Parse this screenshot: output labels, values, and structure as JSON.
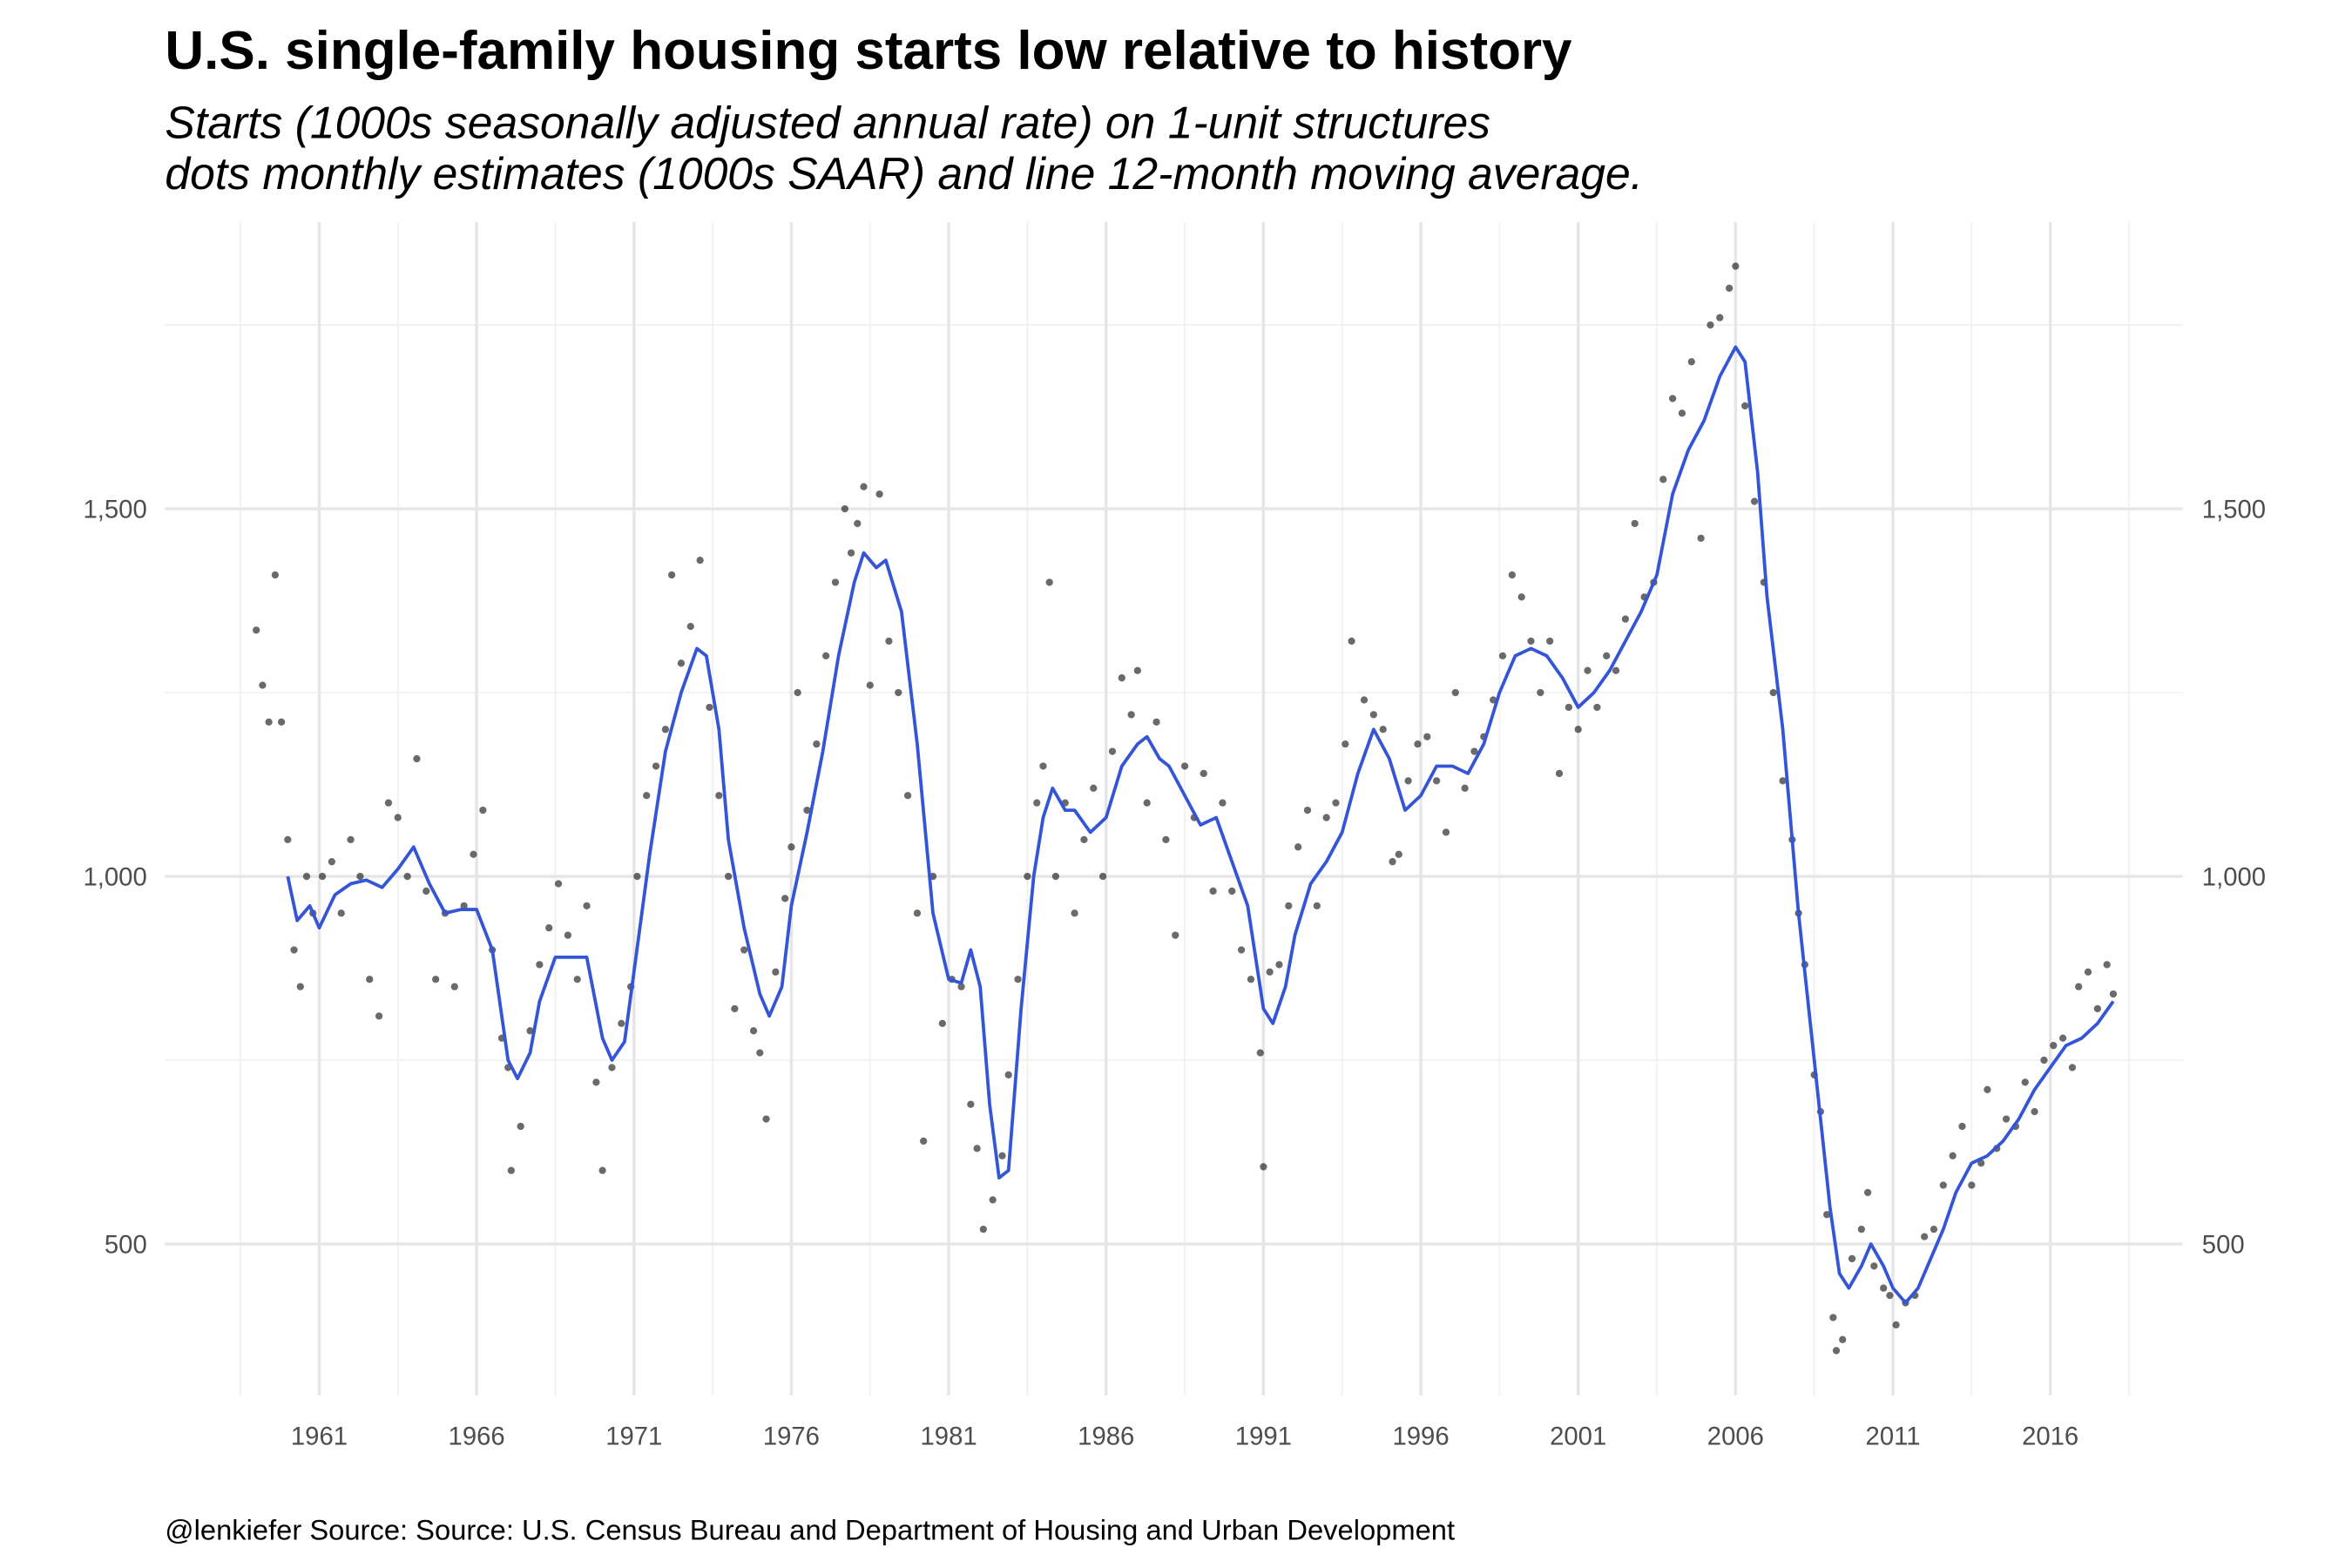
{
  "chart_data": {
    "type": "line",
    "title": "U.S. single-family housing starts low relative to history",
    "subtitle": [
      "Starts (1000s seasonally adjusted annual rate) on 1-unit structures",
      "dots monthly estimates (1000s SAAR) and line 12-month moving average."
    ],
    "caption": "@lenkiefer Source: Source: U.S. Census Bureau and Department of Housing and Urban Development",
    "xlim": [
      1956.1,
      2020.2
    ],
    "xticks": [
      1961,
      1966,
      1971,
      1976,
      1981,
      1986,
      1991,
      1996,
      2001,
      2006,
      2011,
      2016
    ],
    "xminorticks": [
      1958.5,
      1963.5,
      1968.5,
      1973.5,
      1978.5,
      1983.5,
      1988.5,
      1993.5,
      1998.5,
      2003.5,
      2008.5,
      2013.5,
      2018.5
    ],
    "ylim": [
      294,
      1890
    ],
    "yticks": [
      {
        "value": 500,
        "label": "500"
      },
      {
        "value": 1000,
        "label": "1,000"
      },
      {
        "value": 1500,
        "label": "1,500"
      }
    ],
    "yminorticks": [
      750,
      1250,
      1750
    ],
    "grid": true,
    "right_axis_labels": true,
    "series": [
      {
        "type": "scatter",
        "color": "#1a1a1a",
        "x": [
          1959.0,
          1959.2,
          1959.4,
          1959.6,
          1959.8,
          1960.0,
          1960.2,
          1960.4,
          1960.6,
          1960.8,
          1961.1,
          1961.4,
          1961.7,
          1962.0,
          1962.3,
          1962.6,
          1962.9,
          1963.2,
          1963.5,
          1963.8,
          1964.1,
          1964.4,
          1964.7,
          1965.0,
          1965.3,
          1965.6,
          1965.9,
          1966.2,
          1966.5,
          1966.8,
          1967.0,
          1967.1,
          1967.4,
          1967.7,
          1968.0,
          1968.3,
          1968.6,
          1968.9,
          1969.2,
          1969.5,
          1969.8,
          1970.0,
          1970.3,
          1970.6,
          1970.9,
          1971.1,
          1971.4,
          1971.7,
          1972.0,
          1972.2,
          1972.5,
          1972.8,
          1973.1,
          1973.4,
          1973.7,
          1974.0,
          1974.2,
          1974.5,
          1974.8,
          1975.0,
          1975.2,
          1975.5,
          1975.8,
          1976.0,
          1976.2,
          1976.5,
          1976.8,
          1977.1,
          1977.4,
          1977.7,
          1977.9,
          1978.1,
          1978.3,
          1978.5,
          1978.8,
          1979.1,
          1979.4,
          1979.7,
          1980.0,
          1980.2,
          1980.5,
          1980.8,
          1981.1,
          1981.4,
          1981.7,
          1981.9,
          1982.1,
          1982.4,
          1982.7,
          1982.9,
          1983.2,
          1983.5,
          1983.8,
          1984.0,
          1984.2,
          1984.4,
          1984.7,
          1985.0,
          1985.3,
          1985.6,
          1985.9,
          1986.2,
          1986.5,
          1986.8,
          1987.0,
          1987.3,
          1987.6,
          1987.9,
          1988.2,
          1988.5,
          1988.8,
          1989.1,
          1989.4,
          1989.7,
          1990.0,
          1990.3,
          1990.6,
          1990.9,
          1991.0,
          1991.2,
          1991.5,
          1991.8,
          1992.1,
          1992.4,
          1992.7,
          1993.0,
          1993.3,
          1993.6,
          1993.8,
          1994.2,
          1994.5,
          1994.8,
          1995.1,
          1995.3,
          1995.6,
          1995.9,
          1996.2,
          1996.5,
          1996.8,
          1997.1,
          1997.4,
          1997.7,
          1998.0,
          1998.3,
          1998.6,
          1998.9,
          1999.2,
          1999.5,
          1999.8,
          2000.1,
          2000.4,
          2000.7,
          2001.0,
          2001.3,
          2001.6,
          2001.9,
          2002.2,
          2002.5,
          2002.8,
          2003.1,
          2003.4,
          2003.7,
          2004.0,
          2004.3,
          2004.6,
          2004.9,
          2005.2,
          2005.5,
          2005.8,
          2006.0,
          2006.3,
          2006.6,
          2006.9,
          2007.2,
          2007.5,
          2007.8,
          2008.0,
          2008.2,
          2008.5,
          2008.7,
          2008.9,
          2009.1,
          2009.2,
          2009.4,
          2009.7,
          2010.0,
          2010.2,
          2010.4,
          2010.7,
          2010.9,
          2011.1,
          2011.4,
          2011.7,
          2012.0,
          2012.3,
          2012.6,
          2012.9,
          2013.2,
          2013.5,
          2013.8,
          2014.0,
          2014.3,
          2014.6,
          2014.9,
          2015.2,
          2015.5,
          2015.8,
          2016.1,
          2016.4,
          2016.7,
          2016.9,
          2017.2,
          2017.5,
          2017.8,
          2018.0
        ],
        "values": [
          1335,
          1260,
          1210,
          1410,
          1210,
          1050,
          900,
          850,
          1000,
          950,
          1000,
          1020,
          950,
          1050,
          1000,
          860,
          810,
          1100,
          1080,
          1000,
          1160,
          980,
          860,
          950,
          850,
          960,
          1030,
          1090,
          900,
          780,
          740,
          600,
          660,
          790,
          880,
          930,
          990,
          920,
          860,
          960,
          720,
          600,
          740,
          800,
          850,
          1000,
          1110,
          1150,
          1200,
          1410,
          1290,
          1340,
          1430,
          1230,
          1110,
          1000,
          820,
          900,
          790,
          760,
          670,
          870,
          970,
          1040,
          1250,
          1090,
          1180,
          1300,
          1400,
          1500,
          1440,
          1480,
          1530,
          1260,
          1520,
          1320,
          1250,
          1110,
          950,
          640,
          1000,
          800,
          860,
          850,
          690,
          630,
          520,
          560,
          620,
          730,
          860,
          1000,
          1100,
          1150,
          1400,
          1000,
          1100,
          950,
          1050,
          1120,
          1000,
          1170,
          1270,
          1220,
          1280,
          1100,
          1210,
          1050,
          920,
          1150,
          1080,
          1140,
          980,
          1100,
          980,
          900,
          860,
          760,
          605,
          870,
          880,
          960,
          1040,
          1090,
          960,
          1080,
          1100,
          1180,
          1320,
          1240,
          1220,
          1200,
          1020,
          1030,
          1130,
          1180,
          1190,
          1130,
          1060,
          1250,
          1120,
          1170,
          1190,
          1240,
          1300,
          1410,
          1380,
          1320,
          1250,
          1320,
          1140,
          1230,
          1200,
          1280,
          1230,
          1300,
          1280,
          1350,
          1480,
          1380,
          1400,
          1540,
          1650,
          1630,
          1700,
          1460,
          1750,
          1760,
          1800,
          1830,
          1640,
          1510,
          1400,
          1250,
          1130,
          1050,
          950,
          880,
          730,
          680,
          540,
          400,
          355,
          370,
          480,
          520,
          570,
          470,
          440,
          430,
          390,
          420,
          430,
          510,
          520,
          580,
          620,
          660,
          580,
          610,
          710,
          630,
          670,
          660,
          720,
          680,
          750,
          770,
          780,
          740,
          850,
          870,
          820,
          880,
          840
        ]
      },
      {
        "type": "line",
        "color": "#3355d6",
        "x": [
          1960.0,
          1960.3,
          1960.7,
          1961.0,
          1961.5,
          1962.0,
          1962.5,
          1963.0,
          1963.5,
          1964.0,
          1964.5,
          1965.0,
          1965.5,
          1966.0,
          1966.5,
          1967.0,
          1967.3,
          1967.7,
          1968.0,
          1968.5,
          1969.0,
          1969.5,
          1970.0,
          1970.3,
          1970.7,
          1971.0,
          1971.5,
          1972.0,
          1972.5,
          1973.0,
          1973.3,
          1973.7,
          1974.0,
          1974.5,
          1975.0,
          1975.3,
          1975.7,
          1976.0,
          1976.5,
          1977.0,
          1977.5,
          1978.0,
          1978.3,
          1978.7,
          1979.0,
          1979.5,
          1980.0,
          1980.5,
          1981.0,
          1981.4,
          1981.7,
          1982.0,
          1982.3,
          1982.6,
          1982.9,
          1983.3,
          1983.7,
          1984.0,
          1984.3,
          1984.7,
          1985.0,
          1985.5,
          1986.0,
          1986.5,
          1987.0,
          1987.3,
          1987.7,
          1988.0,
          1988.5,
          1989.0,
          1989.5,
          1990.0,
          1990.5,
          1991.0,
          1991.3,
          1991.7,
          1992.0,
          1992.5,
          1993.0,
          1993.5,
          1994.0,
          1994.5,
          1995.0,
          1995.5,
          1996.0,
          1996.5,
          1997.0,
          1997.5,
          1998.0,
          1998.5,
          1999.0,
          1999.5,
          2000.0,
          2000.5,
          2001.0,
          2001.5,
          2002.0,
          2002.5,
          2003.0,
          2003.5,
          2004.0,
          2004.5,
          2005.0,
          2005.5,
          2006.0,
          2006.3,
          2006.7,
          2007.0,
          2007.5,
          2008.0,
          2008.5,
          2009.0,
          2009.3,
          2009.6,
          2010.0,
          2010.3,
          2010.7,
          2011.0,
          2011.4,
          2011.8,
          2012.2,
          2012.6,
          2013.0,
          2013.5,
          2014.0,
          2014.5,
          2015.0,
          2015.5,
          2016.0,
          2016.5,
          2017.0,
          2017.5,
          2018.0
        ],
        "values": [
          1000,
          940,
          960,
          930,
          975,
          990,
          995,
          985,
          1010,
          1040,
          990,
          950,
          955,
          955,
          900,
          750,
          725,
          760,
          830,
          890,
          890,
          890,
          780,
          750,
          775,
          870,
          1030,
          1170,
          1250,
          1310,
          1300,
          1200,
          1050,
          930,
          840,
          810,
          850,
          960,
          1060,
          1170,
          1300,
          1400,
          1440,
          1420,
          1430,
          1360,
          1180,
          950,
          860,
          855,
          900,
          850,
          690,
          590,
          600,
          820,
          1000,
          1080,
          1120,
          1090,
          1090,
          1060,
          1080,
          1150,
          1180,
          1190,
          1160,
          1150,
          1110,
          1070,
          1080,
          1020,
          960,
          820,
          800,
          850,
          920,
          990,
          1020,
          1060,
          1140,
          1200,
          1160,
          1090,
          1110,
          1150,
          1150,
          1140,
          1180,
          1250,
          1300,
          1310,
          1300,
          1270,
          1230,
          1250,
          1280,
          1320,
          1360,
          1410,
          1520,
          1580,
          1620,
          1680,
          1720,
          1700,
          1550,
          1380,
          1200,
          950,
          750,
          550,
          460,
          440,
          470,
          500,
          470,
          440,
          420,
          440,
          480,
          520,
          570,
          610,
          620,
          640,
          670,
          710,
          740,
          770,
          780,
          800,
          830
        ]
      }
    ]
  }
}
